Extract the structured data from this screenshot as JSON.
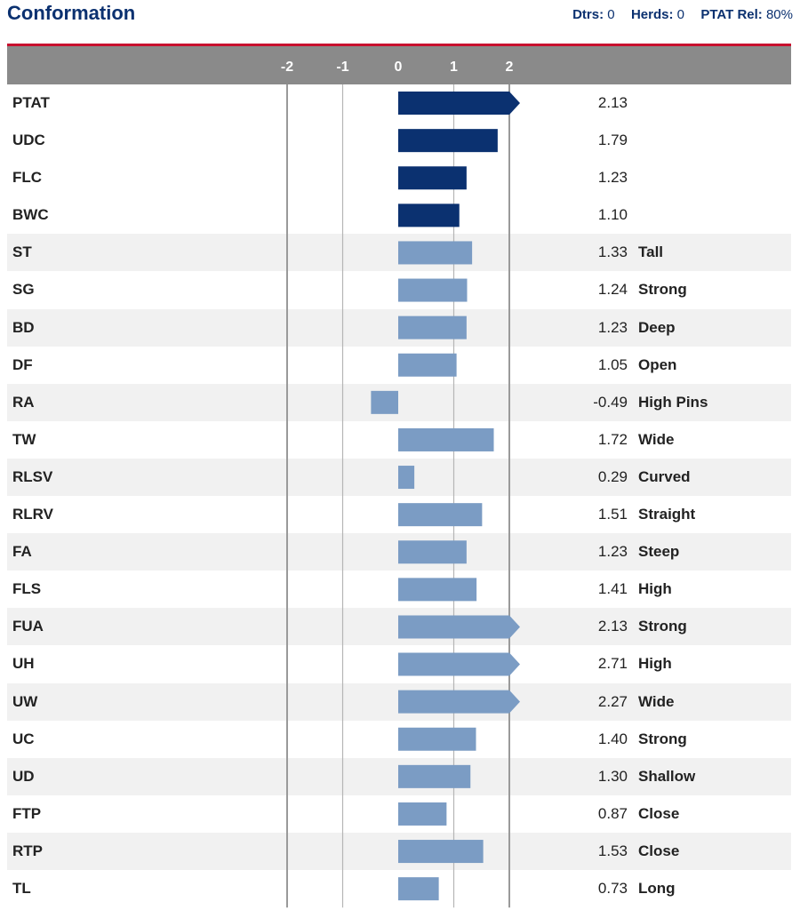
{
  "header": {
    "title": "Conformation",
    "dtrs_label": "Dtrs:",
    "dtrs_value": "0",
    "herds_label": "Herds:",
    "herds_value": "0",
    "rel_label": "PTAT Rel:",
    "rel_value": "80%"
  },
  "colors": {
    "composite_bar": "#0b3170",
    "trait_bar": "#7b9cc4",
    "header_band": "#8a8a8a",
    "accent_line": "#c8102e"
  },
  "chart_data": {
    "type": "bar",
    "orientation": "horizontal",
    "xlim": [
      -2,
      2
    ],
    "x_ticks": [
      "-2",
      "-1",
      "0",
      "1",
      "2"
    ],
    "grid": true,
    "rows": [
      {
        "label": "PTAT",
        "value": 2.13,
        "display": "2.13",
        "desc": "",
        "group": "composite"
      },
      {
        "label": "UDC",
        "value": 1.79,
        "display": "1.79",
        "desc": "",
        "group": "composite"
      },
      {
        "label": "FLC",
        "value": 1.23,
        "display": "1.23",
        "desc": "",
        "group": "composite"
      },
      {
        "label": "BWC",
        "value": 1.1,
        "display": "1.10",
        "desc": "",
        "group": "composite"
      },
      {
        "label": "ST",
        "value": 1.33,
        "display": "1.33",
        "desc": "Tall",
        "group": "trait"
      },
      {
        "label": "SG",
        "value": 1.24,
        "display": "1.24",
        "desc": "Strong",
        "group": "trait"
      },
      {
        "label": "BD",
        "value": 1.23,
        "display": "1.23",
        "desc": "Deep",
        "group": "trait"
      },
      {
        "label": "DF",
        "value": 1.05,
        "display": "1.05",
        "desc": "Open",
        "group": "trait"
      },
      {
        "label": "RA",
        "value": -0.49,
        "display": "-0.49",
        "desc": "High Pins",
        "group": "trait"
      },
      {
        "label": "TW",
        "value": 1.72,
        "display": "1.72",
        "desc": "Wide",
        "group": "trait"
      },
      {
        "label": "RLSV",
        "value": 0.29,
        "display": "0.29",
        "desc": "Curved",
        "group": "trait"
      },
      {
        "label": "RLRV",
        "value": 1.51,
        "display": "1.51",
        "desc": "Straight",
        "group": "trait"
      },
      {
        "label": "FA",
        "value": 1.23,
        "display": "1.23",
        "desc": "Steep",
        "group": "trait"
      },
      {
        "label": "FLS",
        "value": 1.41,
        "display": "1.41",
        "desc": "High",
        "group": "trait"
      },
      {
        "label": "FUA",
        "value": 2.13,
        "display": "2.13",
        "desc": "Strong",
        "group": "trait"
      },
      {
        "label": "UH",
        "value": 2.71,
        "display": "2.71",
        "desc": "High",
        "group": "trait"
      },
      {
        "label": "UW",
        "value": 2.27,
        "display": "2.27",
        "desc": "Wide",
        "group": "trait"
      },
      {
        "label": "UC",
        "value": 1.4,
        "display": "1.40",
        "desc": "Strong",
        "group": "trait"
      },
      {
        "label": "UD",
        "value": 1.3,
        "display": "1.30",
        "desc": "Shallow",
        "group": "trait"
      },
      {
        "label": "FTP",
        "value": 0.87,
        "display": "0.87",
        "desc": "Close",
        "group": "trait"
      },
      {
        "label": "RTP",
        "value": 1.53,
        "display": "1.53",
        "desc": "Close",
        "group": "trait"
      },
      {
        "label": "TL",
        "value": 0.73,
        "display": "0.73",
        "desc": "Long",
        "group": "trait"
      }
    ]
  }
}
